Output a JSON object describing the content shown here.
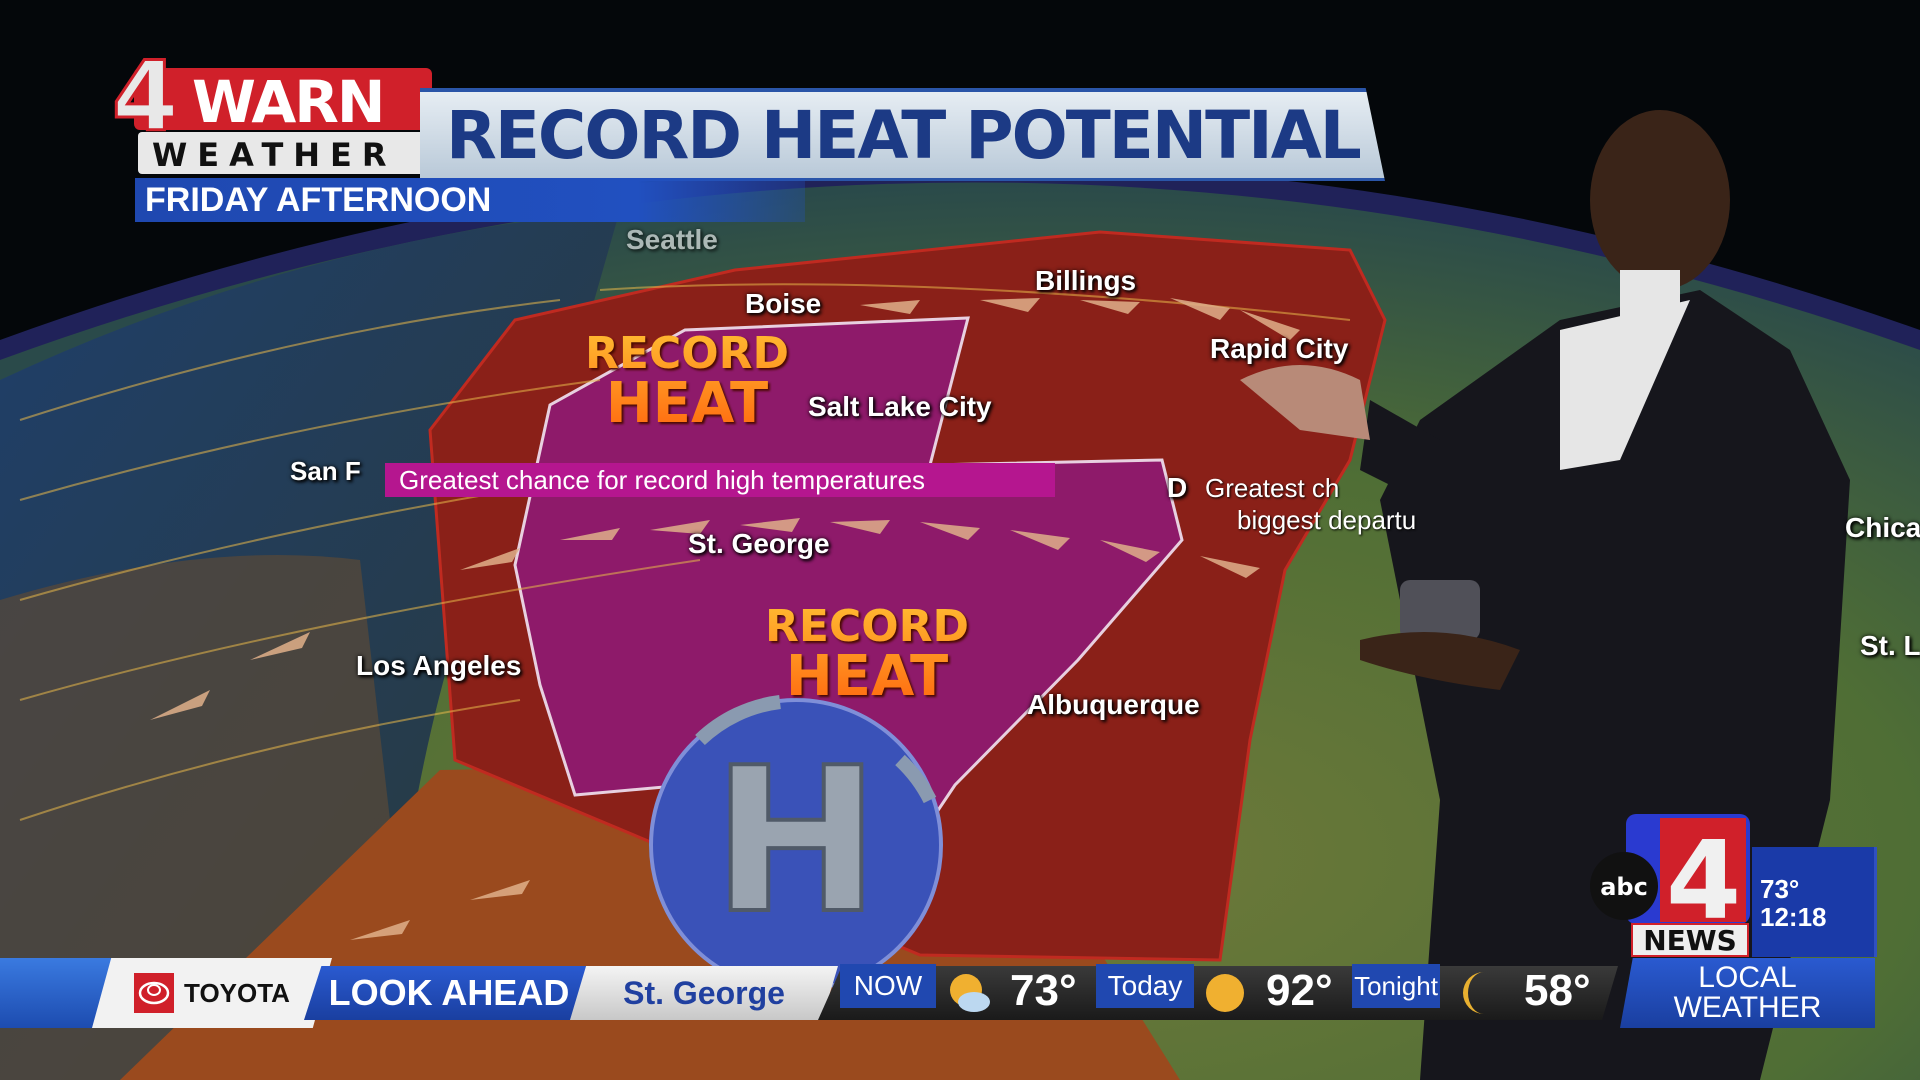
{
  "branding": {
    "logo_text": "4WARN WEATHER",
    "logo_number": "4",
    "logo_warn": "WARN",
    "logo_weather": "WEATHER"
  },
  "header": {
    "title": "RECORD HEAT POTENTIAL",
    "subtitle": "FRIDAY AFTERNOON"
  },
  "map": {
    "cities": [
      "Seattle",
      "Boise",
      "Billings",
      "Rapid City",
      "Salt Lake City",
      "San Francisco",
      "St. George",
      "Los Angeles",
      "Albuquerque",
      "Denver",
      "Chicago",
      "St. Louis"
    ],
    "city_labels_visible": {
      "seattle": "Seattle",
      "boise": "Boise",
      "billings": "Billings",
      "rapid_city": "Rapid City",
      "salt_lake_city": "Salt Lake City",
      "san_francisco": "San F",
      "st_george": "St. George",
      "los_angeles": "Los Angeles",
      "albuquerque": "Albuquerque",
      "denver": "D",
      "chicago": "Chica",
      "st_louis": "St. L"
    },
    "record_heat_label_1": "RECORD",
    "record_heat_label_2": "HEAT",
    "callout_purple": "Greatest chance for record high temperatures",
    "callout_red_line1": "Greatest ch",
    "callout_red_line2": "biggest departu",
    "high_pressure_symbol": "H",
    "colors": {
      "record_zone": "#8e1a6a",
      "heat_zone": "#8a2018",
      "warm_zone": "#9a4a1e",
      "high_pressure": "#3a52b8"
    }
  },
  "ticker": {
    "sponsor": "TOYOTA",
    "segment": "LOOK AHEAD",
    "location": "St. George",
    "now_label": "NOW",
    "now_icon": "partly-cloudy-icon",
    "now_temp": "73°",
    "today_label": "Today",
    "today_icon": "sun-icon",
    "today_temp": "92°",
    "tonight_label": "Tonight",
    "tonight_icon": "moon-icon",
    "tonight_temp": "58°",
    "right_line1": "LOCAL",
    "right_line2": "WEATHER"
  },
  "station_bug": {
    "network": "abc",
    "channel": "4",
    "news": "NEWS",
    "temp": "73°",
    "time": "12:18"
  }
}
